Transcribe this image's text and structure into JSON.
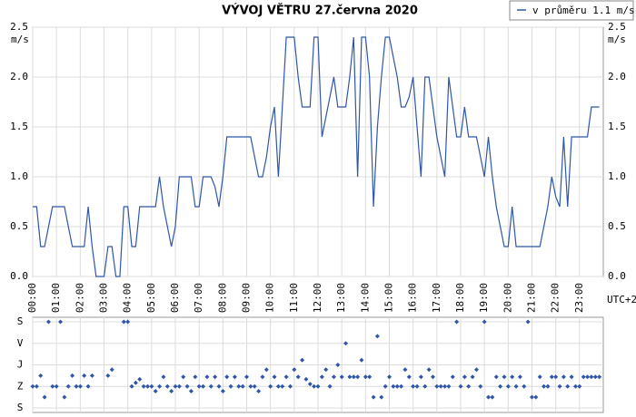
{
  "chart_data": [
    {
      "type": "line",
      "title": "VÝVOJ VĚTRU  27.června 2020",
      "unit": "m/s",
      "timezone": "UTC+2",
      "categories": [
        "00:00",
        null,
        null,
        null,
        null,
        null,
        "01:00",
        null,
        null,
        null,
        null,
        null,
        "02:00",
        null,
        null,
        null,
        null,
        null,
        "03:00",
        null,
        null,
        null,
        null,
        null,
        "04:00",
        null,
        null,
        null,
        null,
        null,
        "05:00",
        null,
        null,
        null,
        null,
        null,
        "06:00",
        null,
        null,
        null,
        null,
        null,
        "07:00",
        null,
        null,
        null,
        null,
        null,
        "08:00",
        null,
        null,
        null,
        null,
        null,
        "09:00",
        null,
        null,
        null,
        null,
        null,
        "10:00",
        null,
        null,
        null,
        null,
        null,
        "11:00",
        null,
        null,
        null,
        null,
        null,
        "12:00",
        null,
        null,
        null,
        null,
        null,
        "13:00",
        null,
        null,
        null,
        null,
        null,
        "14:00",
        null,
        null,
        null,
        null,
        null,
        "15:00",
        null,
        null,
        null,
        null,
        null,
        "16:00",
        null,
        null,
        null,
        null,
        null,
        "17:00",
        null,
        null,
        null,
        null,
        null,
        "18:00",
        null,
        null,
        null,
        null,
        null,
        "19:00",
        null,
        null,
        null,
        null,
        null,
        "20:00",
        null,
        null,
        null,
        null,
        null,
        "21:00",
        null,
        null,
        null,
        null,
        null,
        "22:00",
        null,
        null,
        null,
        null,
        null,
        "23:00",
        null,
        null,
        null,
        null,
        null
      ],
      "series": [
        {
          "name": "v průměru 1.1 m/s",
          "color": "#2f56a8",
          "values": [
            0.7,
            0.7,
            0.3,
            0.3,
            0.5,
            0.7,
            0.7,
            0.7,
            0.7,
            0.5,
            0.3,
            0.3,
            0.3,
            0.3,
            0.7,
            0.3,
            0.0,
            0.0,
            0.0,
            0.3,
            0.3,
            0.0,
            0.0,
            0.7,
            0.7,
            0.3,
            0.3,
            0.7,
            0.7,
            0.7,
            0.7,
            0.7,
            1.0,
            0.7,
            0.5,
            0.3,
            0.5,
            1.0,
            1.0,
            1.0,
            1.0,
            0.7,
            0.7,
            1.0,
            1.0,
            1.0,
            0.9,
            0.7,
            1.0,
            1.4,
            1.4,
            1.4,
            1.4,
            1.4,
            1.4,
            1.4,
            1.2,
            1.0,
            1.0,
            1.2,
            1.5,
            1.7,
            1.0,
            1.7,
            2.4,
            2.4,
            2.4,
            2.0,
            1.7,
            1.7,
            1.7,
            2.4,
            2.4,
            1.4,
            1.6,
            1.8,
            2.0,
            1.7,
            1.7,
            1.7,
            2.0,
            2.4,
            1.0,
            2.4,
            2.4,
            2.0,
            0.7,
            1.5,
            2.0,
            2.4,
            2.4,
            2.2,
            2.0,
            1.7,
            1.7,
            1.8,
            2.0,
            1.5,
            1.0,
            2.0,
            2.0,
            1.7,
            1.4,
            1.2,
            1.0,
            2.0,
            1.7,
            1.4,
            1.4,
            1.7,
            1.4,
            1.4,
            1.4,
            1.2,
            1.0,
            1.4,
            1.0,
            0.7,
            0.5,
            0.3,
            0.3,
            0.7,
            0.3,
            0.3,
            0.3,
            0.3,
            0.3,
            0.3,
            0.3,
            0.5,
            0.7,
            1.0,
            0.8,
            0.7,
            1.4,
            0.7,
            1.4,
            1.4,
            1.4,
            1.4,
            1.4,
            1.7,
            1.7,
            1.7
          ]
        }
      ],
      "ylim": [
        0,
        2.5
      ],
      "yticks": [
        {
          "value": 0,
          "label": "0.0"
        },
        0.5,
        {
          "value": 1,
          "label": "1.0"
        },
        1.5,
        {
          "value": 2,
          "label": "2.0"
        },
        2.5
      ],
      "grid": true,
      "legend": "top-right"
    },
    {
      "type": "scatter",
      "color": "#2f56a8",
      "values": [
        270,
        270,
        225,
        315,
        0,
        270,
        270,
        0,
        315,
        270,
        225,
        270,
        270,
        225,
        270,
        225,
        null,
        null,
        null,
        225,
        200,
        null,
        null,
        0,
        0,
        270,
        255,
        240,
        270,
        270,
        270,
        290,
        270,
        230,
        270,
        290,
        270,
        270,
        230,
        270,
        290,
        230,
        270,
        270,
        230,
        270,
        230,
        270,
        290,
        230,
        270,
        230,
        270,
        270,
        230,
        270,
        270,
        290,
        230,
        200,
        270,
        230,
        270,
        270,
        230,
        270,
        200,
        230,
        160,
        240,
        260,
        270,
        270,
        230,
        200,
        270,
        230,
        180,
        230,
        90,
        230,
        230,
        230,
        160,
        230,
        230,
        315,
        60,
        315,
        270,
        230,
        270,
        270,
        270,
        200,
        230,
        270,
        270,
        230,
        270,
        200,
        230,
        270,
        270,
        270,
        270,
        230,
        0,
        270,
        230,
        270,
        230,
        200,
        270,
        0,
        315,
        315,
        230,
        270,
        230,
        270,
        230,
        270,
        230,
        270,
        0,
        315,
        315,
        230,
        270,
        270,
        230,
        230,
        270,
        230,
        270,
        230,
        270,
        270,
        230,
        230,
        230,
        230,
        230
      ],
      "ylim": [
        360,
        0
      ],
      "yticks": [
        {
          "value": 0,
          "label": "S"
        },
        {
          "value": 90,
          "label": "V"
        },
        {
          "value": 180,
          "label": "J"
        },
        {
          "value": 270,
          "label": "Z"
        },
        {
          "value": 360,
          "label": "S"
        }
      ],
      "grid": true
    }
  ]
}
